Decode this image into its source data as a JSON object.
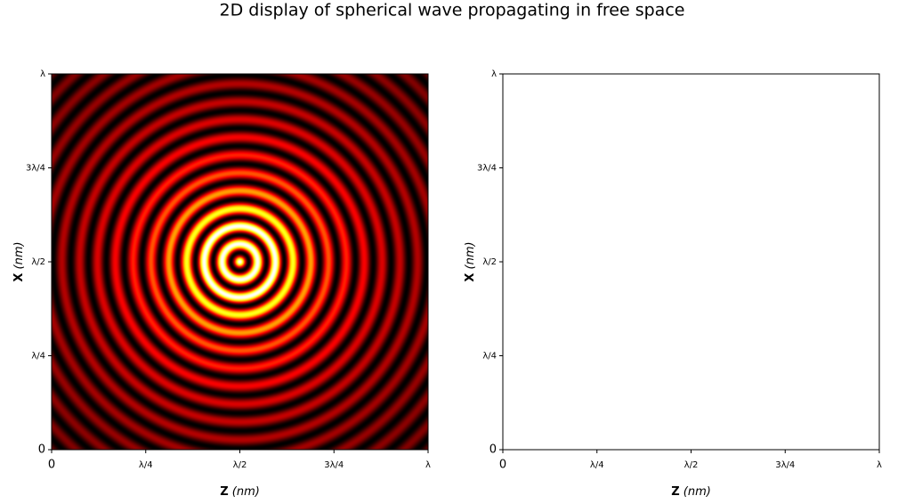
{
  "title": "2D display of spherical wave propagating in free space",
  "chart_data": [
    {
      "type": "heatmap",
      "colormap": "hot",
      "x_label": "Z",
      "x_label_unit": "(nm)",
      "y_label": "X",
      "y_label_unit": "(nm)",
      "xlim": [
        0,
        1
      ],
      "ylim": [
        0,
        1
      ],
      "xticks": [
        0,
        {
          "value": 0.25,
          "label": "λ/4"
        },
        {
          "value": 0.5,
          "label": "λ/2"
        },
        {
          "value": 0.75,
          "label": "3λ/4"
        },
        {
          "value": 1,
          "label": "λ"
        }
      ],
      "yticks": [
        0,
        {
          "value": 0.25,
          "label": "λ/4"
        },
        {
          "value": 0.5,
          "label": "λ/2"
        },
        {
          "value": 0.75,
          "label": "3λ/4"
        },
        {
          "value": 1,
          "label": "λ"
        }
      ]
    },
    {
      "type": "heatmap",
      "x_label": "Z",
      "x_label_unit": "(nm)",
      "y_label": "X",
      "y_label_unit": "(nm)",
      "xlim": [
        0,
        1
      ],
      "ylim": [
        0,
        1
      ],
      "xticks": [
        0,
        {
          "value": 0.25,
          "label": "λ/4"
        },
        {
          "value": 0.5,
          "label": "λ/2"
        },
        {
          "value": 0.75,
          "label": "3λ/4"
        },
        {
          "value": 1,
          "label": "λ"
        }
      ],
      "yticks": [
        0,
        {
          "value": 0.25,
          "label": "λ/4"
        },
        {
          "value": 0.5,
          "label": "λ/2"
        },
        {
          "value": 0.75,
          "label": "3λ/4"
        },
        {
          "value": 1,
          "label": "λ"
        }
      ]
    }
  ]
}
